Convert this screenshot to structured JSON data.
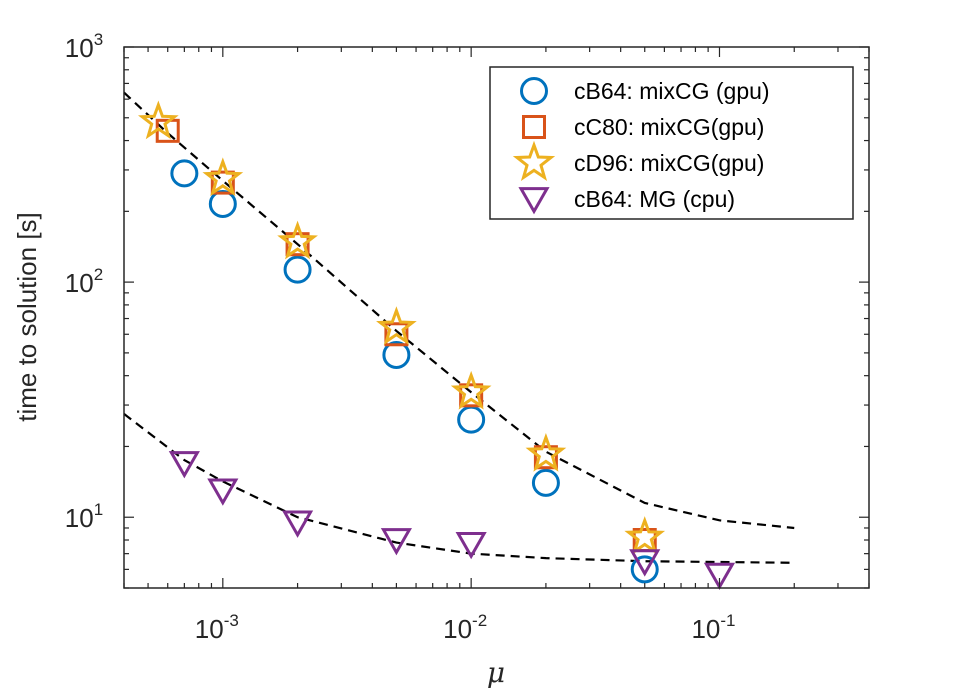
{
  "chart_data": {
    "type": "scatter",
    "xscale": "log",
    "yscale": "log",
    "xlim": [
      0.0004,
      0.4
    ],
    "ylim": [
      5,
      1000
    ],
    "xticks": [
      {
        "base": "10",
        "exp": "-3",
        "value": 0.001
      },
      {
        "base": "10",
        "exp": "-2",
        "value": 0.01
      },
      {
        "base": "10",
        "exp": "-1",
        "value": 0.1
      }
    ],
    "yticks": [
      {
        "base": "10",
        "exp": "1",
        "value": 10
      },
      {
        "base": "10",
        "exp": "2",
        "value": 100
      },
      {
        "base": "10",
        "exp": "3",
        "value": 1000
      }
    ],
    "xlabel": "μ",
    "ylabel": "time to solution [s]",
    "legend_position": "top-right",
    "series": [
      {
        "name": "cB64: mixCG (gpu)",
        "marker": "circle",
        "color": "#0072BD",
        "x": [
          0.0007,
          0.001,
          0.002,
          0.005,
          0.01,
          0.02,
          0.05
        ],
        "y": [
          290,
          215,
          113,
          49,
          26,
          14,
          6
        ]
      },
      {
        "name": "cC80: mixCG(gpu)",
        "marker": "square",
        "color": "#D95319",
        "x": [
          0.0006,
          0.001,
          0.002,
          0.005,
          0.01,
          0.02,
          0.05
        ],
        "y": [
          440,
          265,
          145,
          60,
          33,
          18,
          8
        ]
      },
      {
        "name": "cD96: mixCG(gpu)",
        "marker": "star",
        "color": "#EDB120",
        "x": [
          0.00055,
          0.001,
          0.002,
          0.005,
          0.01,
          0.02,
          0.05
        ],
        "y": [
          480,
          275,
          148,
          64,
          34,
          18.5,
          8.2
        ]
      },
      {
        "name": "cB64: MG (cpu)",
        "marker": "triangle-down",
        "color": "#7E2F8E",
        "x": [
          0.0007,
          0.001,
          0.002,
          0.005,
          0.01,
          0.05,
          0.1
        ],
        "y": [
          17,
          13,
          9.5,
          8,
          7.7,
          6.5,
          5.7
        ]
      }
    ],
    "fit_lines": [
      {
        "name": "fit-gpu",
        "style": "dashed",
        "color": "#000000",
        "x": [
          0.0004,
          0.0006,
          0.001,
          0.002,
          0.005,
          0.01,
          0.02,
          0.05,
          0.1,
          0.2
        ],
        "y": [
          640,
          430,
          270,
          145,
          62,
          34,
          19,
          11.5,
          9.7,
          9
        ]
      },
      {
        "name": "fit-cpu",
        "style": "dashed",
        "color": "#000000",
        "x": [
          0.0004,
          0.0007,
          0.001,
          0.002,
          0.005,
          0.01,
          0.02,
          0.05,
          0.1,
          0.2
        ],
        "y": [
          27.5,
          17.5,
          14.2,
          10,
          7.8,
          7,
          6.7,
          6.5,
          6.45,
          6.4
        ]
      }
    ]
  }
}
